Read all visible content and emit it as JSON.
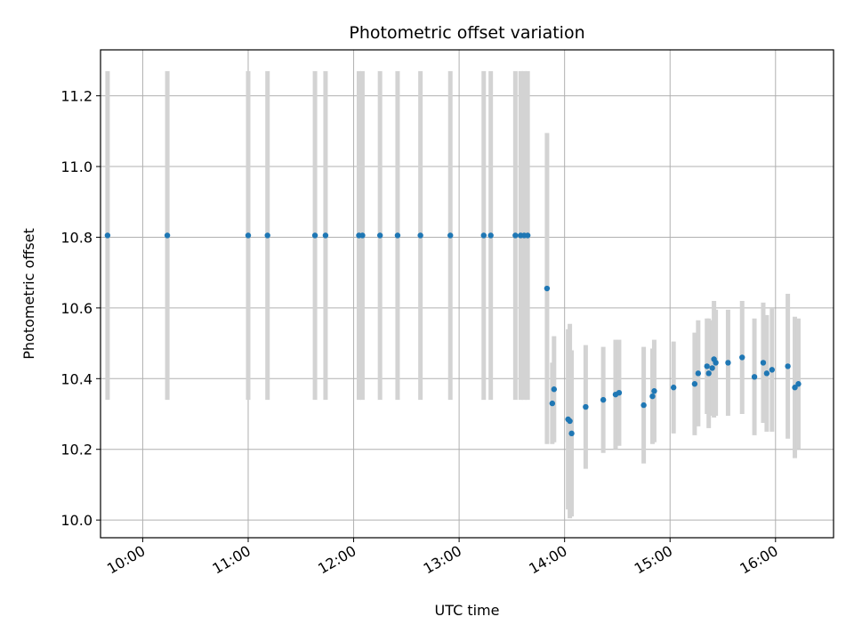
{
  "chart_data": {
    "type": "scatter",
    "title": "Photometric offset variation",
    "xlabel": "UTC time",
    "ylabel": "Photometric offset",
    "x_tick_labels": [
      "10:00",
      "11:00",
      "12:00",
      "13:00",
      "14:00",
      "15:00",
      "16:00"
    ],
    "x_ticks": [
      "10:00",
      "11:00",
      "12:00",
      "13:00",
      "14:00",
      "15:00",
      "16:00"
    ],
    "y_tick_labels": [
      "10.0",
      "10.2",
      "10.4",
      "10.6",
      "10.8",
      "11.0",
      "11.2"
    ],
    "y_ticks": [
      10.0,
      10.2,
      10.4,
      10.6,
      10.8,
      11.0,
      11.2
    ],
    "xlim": [
      "09:36",
      "16:33"
    ],
    "ylim": [
      9.95,
      11.33
    ],
    "grid": true,
    "colors": {
      "points": "#1f77b4",
      "errorbars": "#d3d3d3",
      "grid": "#b0b0b0"
    },
    "series": [
      {
        "x": [
          "09:40",
          "10:14",
          "11:00",
          "11:11",
          "11:38",
          "11:44",
          "12:03",
          "12:05",
          "12:15",
          "12:25",
          "12:38",
          "12:55",
          "13:14",
          "13:18",
          "13:32",
          "13:35",
          "13:37",
          "13:39",
          "13:50",
          "13:53",
          "13:54",
          "14:02",
          "14:03",
          "14:04",
          "14:12",
          "14:22",
          "14:29",
          "14:31",
          "14:45",
          "14:50",
          "14:51",
          "15:02",
          "15:14",
          "15:16",
          "15:21",
          "15:22",
          "15:24",
          "15:25",
          "15:26",
          "15:33",
          "15:41",
          "15:48",
          "15:53",
          "15:55",
          "15:58",
          "16:07",
          "16:11",
          "16:13"
        ],
        "y": [
          10.805,
          10.805,
          10.805,
          10.805,
          10.805,
          10.805,
          10.805,
          10.805,
          10.805,
          10.805,
          10.805,
          10.805,
          10.805,
          10.805,
          10.805,
          10.805,
          10.805,
          10.805,
          10.655,
          10.33,
          10.37,
          10.285,
          10.28,
          10.245,
          10.32,
          10.34,
          10.355,
          10.36,
          10.325,
          10.35,
          10.365,
          10.375,
          10.385,
          10.415,
          10.435,
          10.415,
          10.43,
          10.455,
          10.445,
          10.445,
          10.46,
          10.405,
          10.445,
          10.415,
          10.425,
          10.435,
          10.375,
          10.385
        ],
        "err": [
          0.465,
          0.465,
          0.465,
          0.465,
          0.465,
          0.465,
          0.465,
          0.465,
          0.465,
          0.465,
          0.465,
          0.465,
          0.465,
          0.465,
          0.465,
          0.465,
          0.465,
          0.465,
          0.44,
          0.115,
          0.15,
          0.255,
          0.275,
          0.235,
          0.175,
          0.15,
          0.155,
          0.15,
          0.165,
          0.135,
          0.145,
          0.13,
          0.145,
          0.15,
          0.135,
          0.155,
          0.135,
          0.165,
          0.15,
          0.15,
          0.16,
          0.165,
          0.17,
          0.165,
          0.175,
          0.205,
          0.2,
          0.185
        ]
      }
    ]
  }
}
